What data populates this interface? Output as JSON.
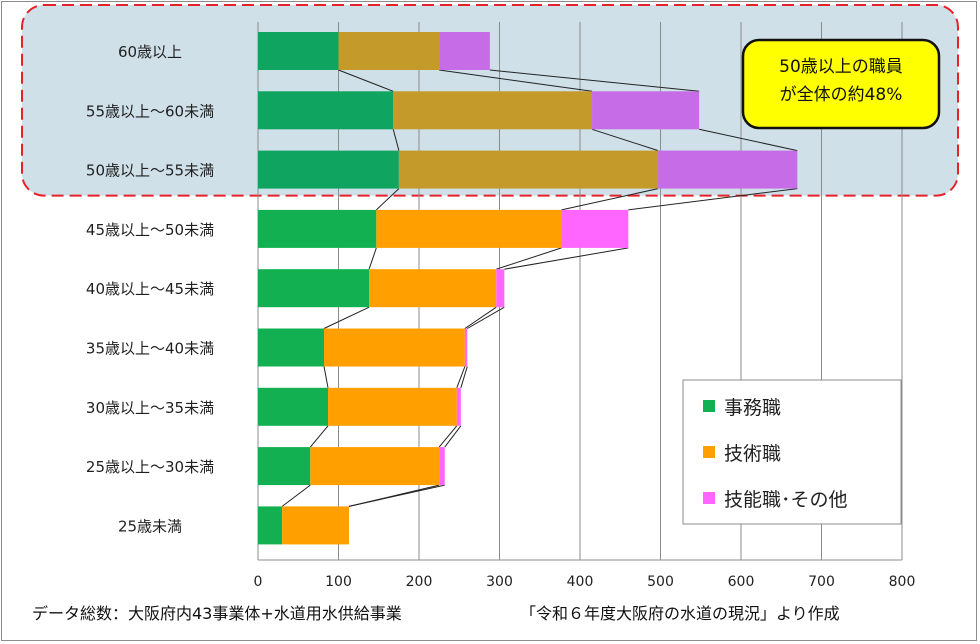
{
  "chart_data": {
    "type": "bar",
    "orientation": "horizontal",
    "stacked": true,
    "categories": [
      "60歳以上",
      "55歳以上～60未満",
      "50歳以上～55未満",
      "45歳以上～50未満",
      "40歳以上～45未満",
      "35歳以上～40未満",
      "30歳以上～35未満",
      "25歳以上～30未満",
      "25歳未満"
    ],
    "series": [
      {
        "name": "事務職",
        "values": [
          100,
          168,
          175,
          147,
          138,
          82,
          87,
          65,
          30
        ],
        "color": "#12b050",
        "highlight_color": "#0fa460"
      },
      {
        "name": "技術職",
        "values": [
          125,
          247,
          322,
          230,
          158,
          175,
          160,
          160,
          83
        ],
        "color": "#ff9f00",
        "highlight_color": "#c49a2a"
      },
      {
        "name": "技能職･その他",
        "values": [
          63,
          133,
          173,
          83,
          10,
          3,
          5,
          7,
          0
        ],
        "color": "#ff66ff",
        "highlight_color": "#c66ce6"
      }
    ],
    "xlim": [
      0,
      800
    ],
    "x_ticks": [
      "0",
      "100",
      "200",
      "300",
      "400",
      "500",
      "600",
      "700",
      "800"
    ],
    "grid": true,
    "legend_position": "bottom-right",
    "highlighted_categories": [
      "60歳以上",
      "55歳以上～60未満",
      "50歳以上～55未満"
    ],
    "callout": {
      "lines": [
        "50歳以上の職員",
        "が全体の約48%"
      ],
      "fill": "#ffff00"
    }
  },
  "footnote_left": "データ総数：大阪府内43事業体+水道用水供給事業",
  "footnote_right": "「令和６年度大阪府の水道の現況」より作成"
}
